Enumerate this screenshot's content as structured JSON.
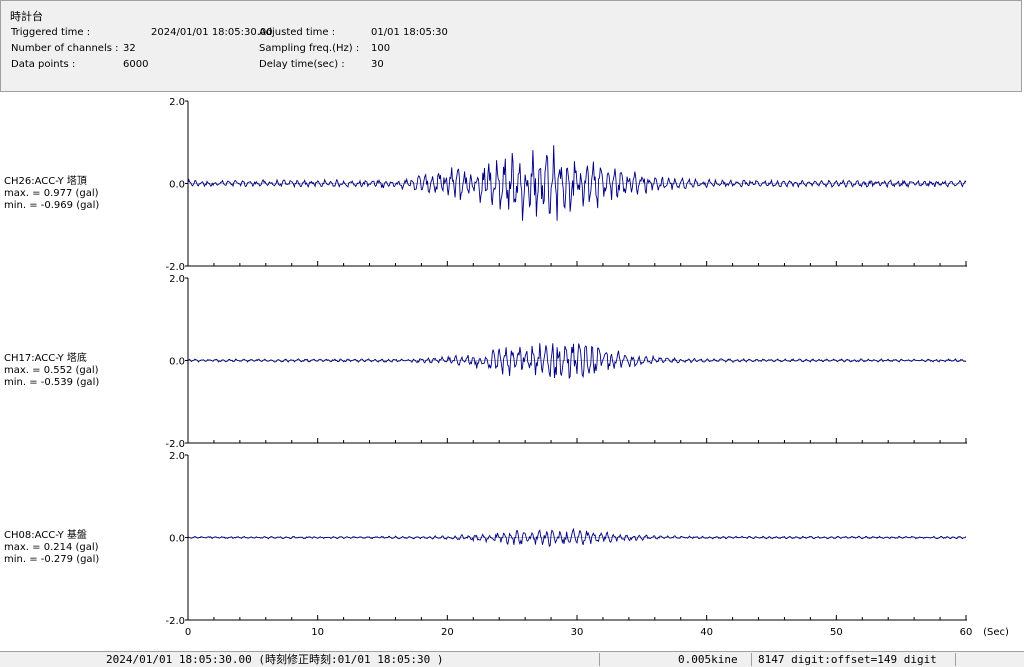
{
  "header": {
    "station": "時計台",
    "triggered_label": "Triggered time :",
    "triggered_value": "2024/01/01 18:05:30.00",
    "adjusted_label": "Adjusted time :",
    "adjusted_value": "01/01 18:05:30",
    "channels_label": "Number of channels :",
    "channels_value": "32",
    "sampling_label": "Sampling freq.(Hz) :",
    "sampling_value": "100",
    "datapoints_label": "Data points :",
    "datapoints_value": "6000",
    "delay_label": "Delay time(sec) :",
    "delay_value": "30"
  },
  "channels": [
    {
      "name": "CH26:ACC-Y 塔頂",
      "max_text": "max. = 0.977 (gal)",
      "min_text": "min. = -0.969 (gal)"
    },
    {
      "name": "CH17:ACC-Y 塔底",
      "max_text": "max. = 0.552 (gal)",
      "min_text": "min. = -0.539 (gal)"
    },
    {
      "name": "CH08:ACC-Y 基盤",
      "max_text": "max. = 0.214 (gal)",
      "min_text": "min. = -0.279 (gal)"
    }
  ],
  "x_unit_label": "(Sec)",
  "status": {
    "time_text": "2024/01/01 18:05:30.00  (時刻修正時刻:01/01 18:05:30  )",
    "unit_text": "0.005kine",
    "digit_text": "8147 digit:offset=149 digit"
  },
  "colors": {
    "trace": "#000080",
    "axis": "#000000"
  },
  "chart_data": [
    {
      "type": "line",
      "series": [
        {
          "name": "CH26:ACC-Y 塔頂",
          "max": 0.977,
          "min": -0.969
        }
      ],
      "xlim": [
        0,
        60
      ],
      "ylim": [
        -2.0,
        2.0
      ],
      "x_ticks": [
        0,
        10,
        20,
        30,
        40,
        50,
        60
      ],
      "y_tick_labels": [
        "2.0",
        "0.0",
        "-2.0"
      ],
      "grid": false
    },
    {
      "type": "line",
      "series": [
        {
          "name": "CH17:ACC-Y 塔底",
          "max": 0.552,
          "min": -0.539
        }
      ],
      "xlim": [
        0,
        60
      ],
      "ylim": [
        -2.0,
        2.0
      ],
      "x_ticks": [
        0,
        10,
        20,
        30,
        40,
        50,
        60
      ],
      "y_tick_labels": [
        "2.0",
        "0.0",
        "-2.0"
      ],
      "grid": false
    },
    {
      "type": "line",
      "series": [
        {
          "name": "CH08:ACC-Y 基盤",
          "max": 0.214,
          "min": -0.279
        }
      ],
      "xlim": [
        0,
        60
      ],
      "ylim": [
        -2.0,
        2.0
      ],
      "x_ticks": [
        0,
        10,
        20,
        30,
        40,
        50,
        60
      ],
      "x_tick_labels": [
        "0",
        "10",
        "20",
        "30",
        "40",
        "50",
        "60"
      ],
      "y_tick_labels": [
        "2.0",
        "0.0",
        "-2.0"
      ],
      "grid": false
    }
  ]
}
